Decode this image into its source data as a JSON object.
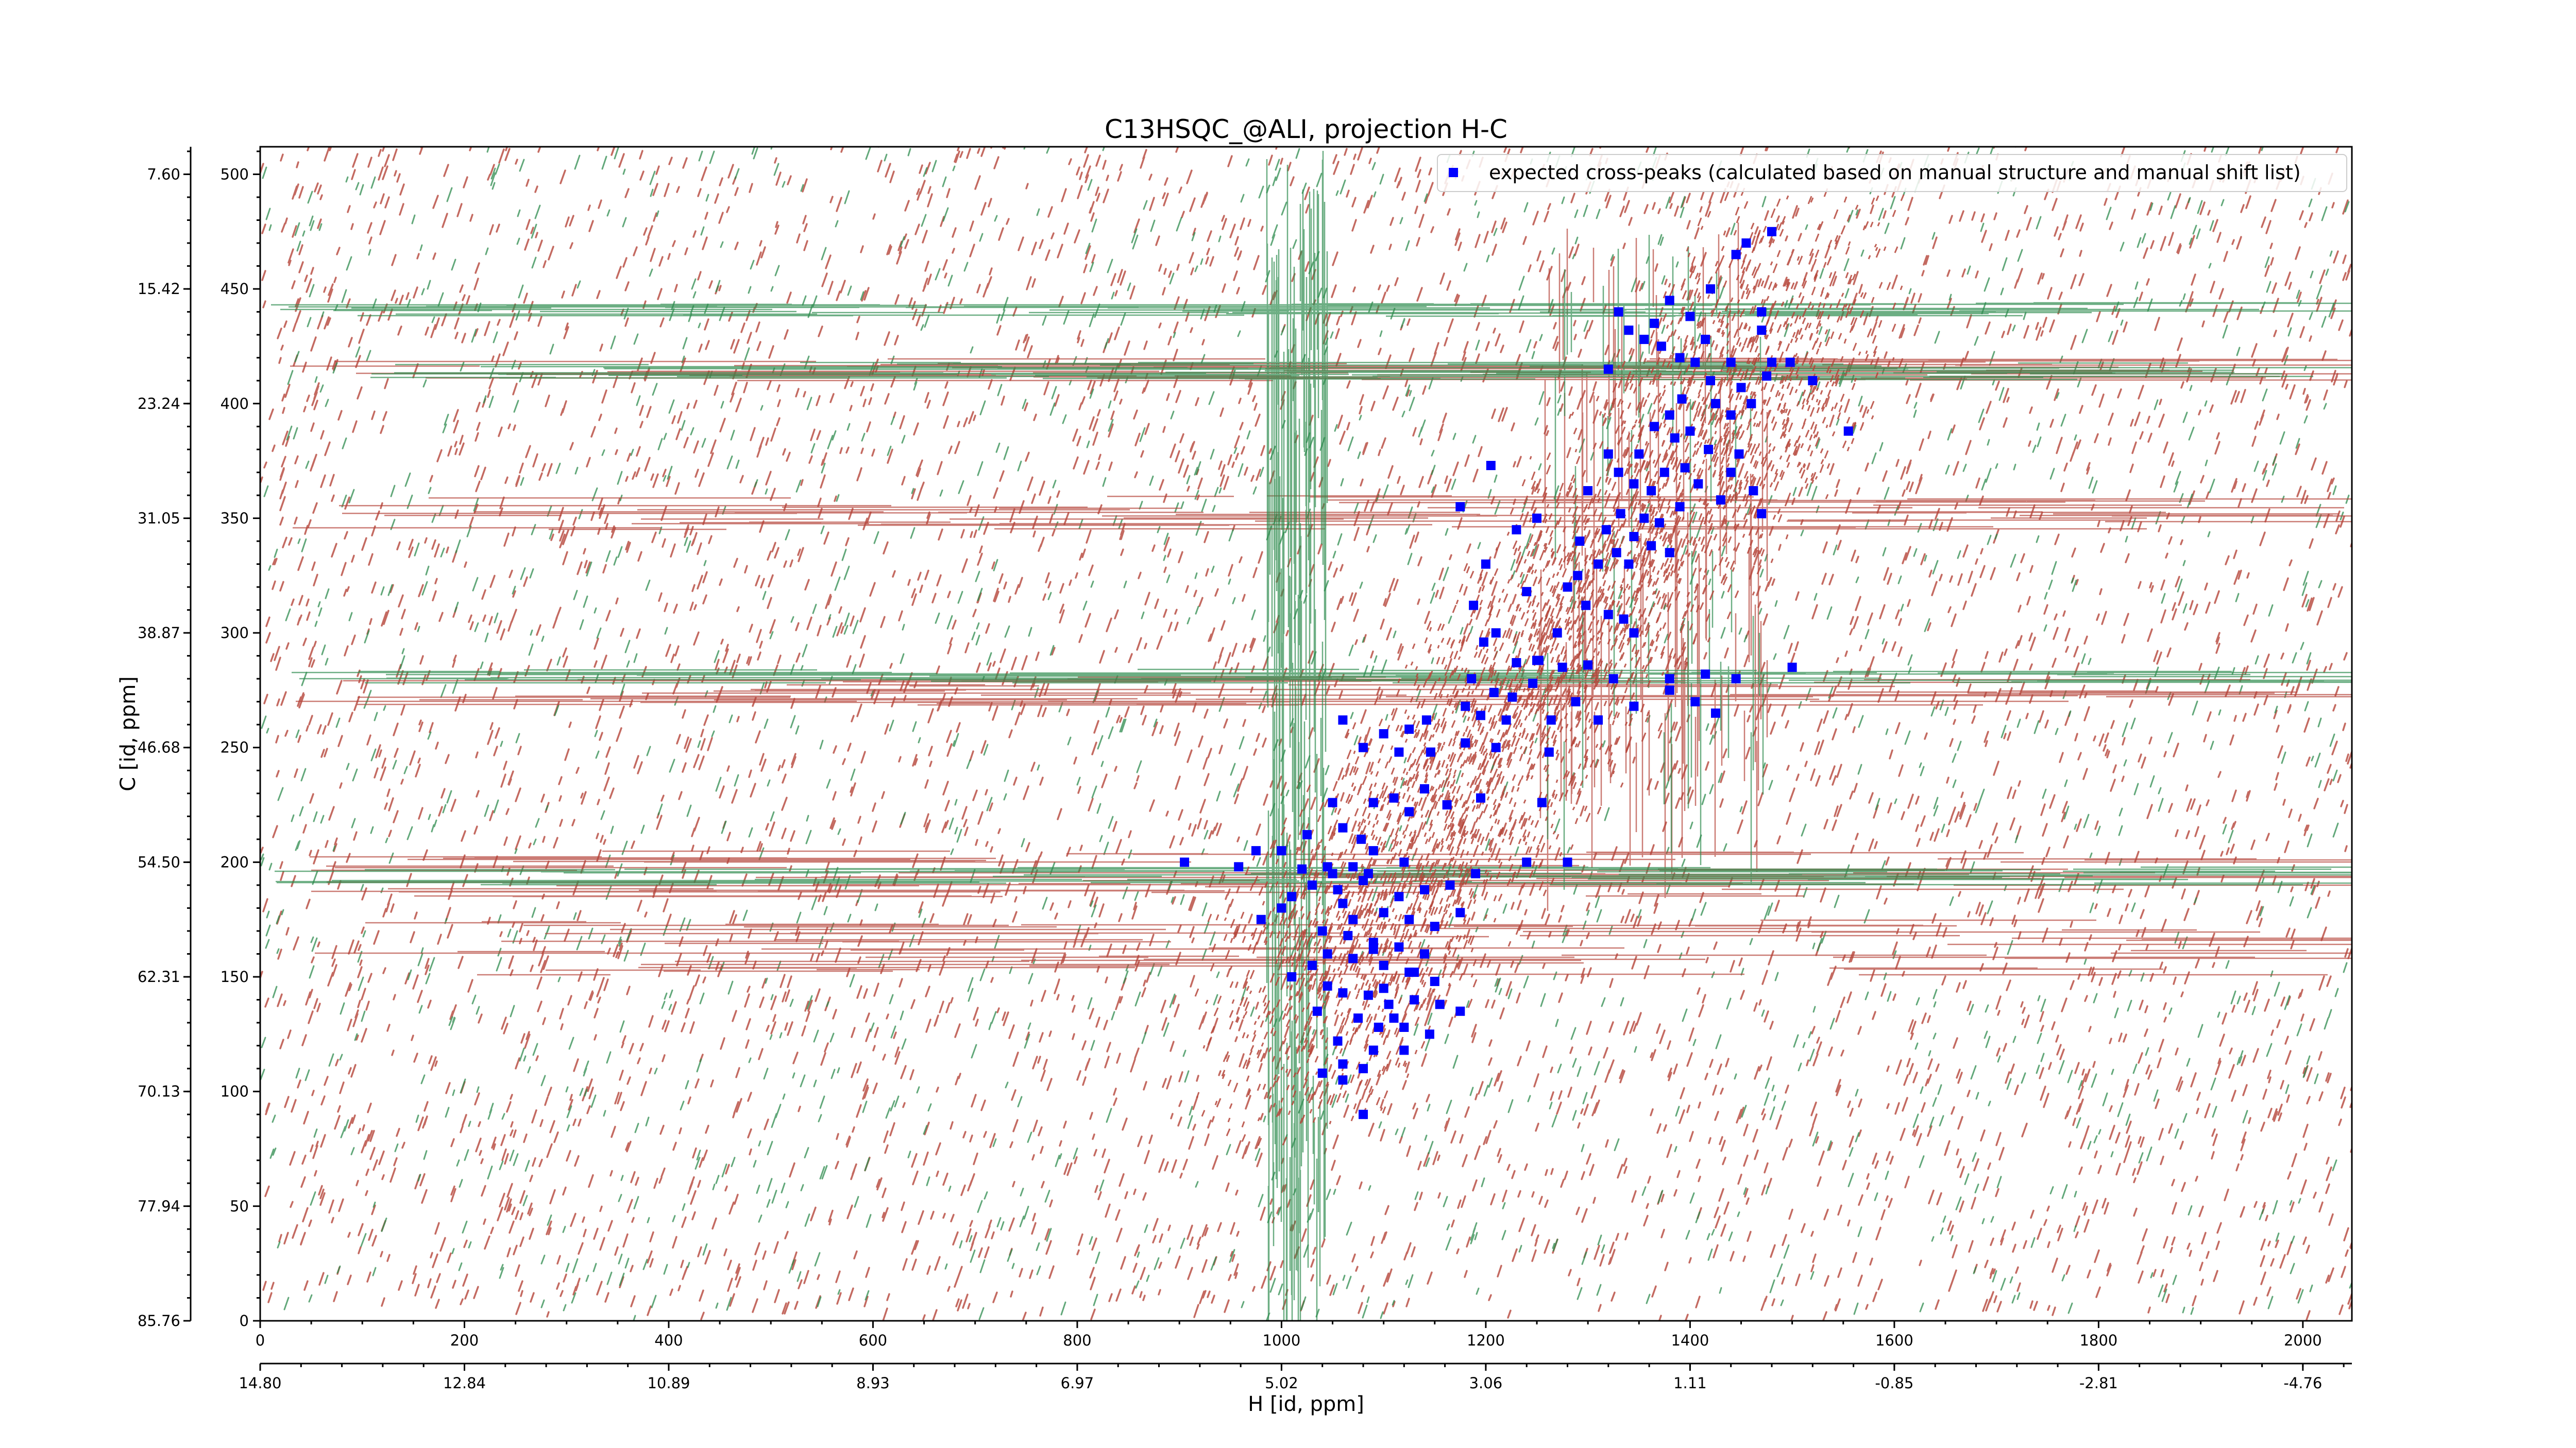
{
  "chart_data": {
    "type": "scatter",
    "title": "C13HSQC_@ALI, projection H-C",
    "xlabel": "H [id, ppm]",
    "ylabel": "C [id, ppm]",
    "xlim": [
      0,
      2048
    ],
    "ylim": [
      0,
      512
    ],
    "grid": false,
    "legend_position": "top-right",
    "x_ticks": [
      "0",
      "200",
      "400",
      "600",
      "800",
      "1000",
      "1200",
      "1400",
      "1600",
      "1800",
      "2000"
    ],
    "y_ticks": [
      "0",
      "50",
      "100",
      "150",
      "200",
      "250",
      "300",
      "350",
      "400",
      "450",
      "500"
    ],
    "x_ppm_ticks": [
      "14.80",
      "12.84",
      "10.89",
      "8.93",
      "6.97",
      "5.02",
      "3.06",
      "1.11",
      "-0.85",
      "-2.81",
      "-4.76"
    ],
    "y_ppm_ticks": [
      "7.60",
      "15.42",
      "23.24",
      "31.05",
      "38.87",
      "46.68",
      "54.50",
      "62.31",
      "70.13",
      "77.94",
      "85.76"
    ],
    "colors": {
      "positive_contour": "#b5453a",
      "negative_contour": "#2e8b4e",
      "peaks": "#0000ff"
    },
    "series": [
      {
        "name": "expected cross-peaks (calculated based on manual structure and manual shift list)",
        "color": "#0000ff",
        "points": [
          [
            1480,
            475
          ],
          [
            1455,
            470
          ],
          [
            1445,
            465
          ],
          [
            1420,
            450
          ],
          [
            1380,
            445
          ],
          [
            1330,
            440
          ],
          [
            1400,
            438
          ],
          [
            1365,
            435
          ],
          [
            1340,
            432
          ],
          [
            1355,
            428
          ],
          [
            1470,
            440
          ],
          [
            1470,
            432
          ],
          [
            1415,
            428
          ],
          [
            1372,
            425
          ],
          [
            1390,
            420
          ],
          [
            1405,
            418
          ],
          [
            1440,
            418
          ],
          [
            1480,
            418
          ],
          [
            1498,
            418
          ],
          [
            1520,
            410
          ],
          [
            1475,
            412
          ],
          [
            1320,
            415
          ],
          [
            1420,
            410
          ],
          [
            1450,
            407
          ],
          [
            1392,
            402
          ],
          [
            1425,
            400
          ],
          [
            1380,
            395
          ],
          [
            1440,
            395
          ],
          [
            1460,
            400
          ],
          [
            1365,
            390
          ],
          [
            1385,
            385
          ],
          [
            1400,
            388
          ],
          [
            1555,
            388
          ],
          [
            1418,
            380
          ],
          [
            1448,
            378
          ],
          [
            1350,
            378
          ],
          [
            1320,
            378
          ],
          [
            1330,
            370
          ],
          [
            1375,
            370
          ],
          [
            1395,
            372
          ],
          [
            1345,
            365
          ],
          [
            1362,
            362
          ],
          [
            1408,
            365
          ],
          [
            1440,
            370
          ],
          [
            1462,
            362
          ],
          [
            1205,
            373
          ],
          [
            1300,
            362
          ],
          [
            1390,
            355
          ],
          [
            1332,
            352
          ],
          [
            1355,
            350
          ],
          [
            1370,
            348
          ],
          [
            1318,
            345
          ],
          [
            1345,
            342
          ],
          [
            1292,
            340
          ],
          [
            1362,
            338
          ],
          [
            1380,
            335
          ],
          [
            1328,
            335
          ],
          [
            1310,
            330
          ],
          [
            1340,
            330
          ],
          [
            1290,
            325
          ],
          [
            1470,
            352
          ],
          [
            1430,
            358
          ],
          [
            1250,
            350
          ],
          [
            1175,
            355
          ],
          [
            1230,
            345
          ],
          [
            1200,
            330
          ],
          [
            1280,
            320
          ],
          [
            1240,
            318
          ],
          [
            1298,
            312
          ],
          [
            1320,
            308
          ],
          [
            1345,
            300
          ],
          [
            1335,
            306
          ],
          [
            1270,
            300
          ],
          [
            1188,
            312
          ],
          [
            1210,
            300
          ],
          [
            1252,
            288
          ],
          [
            1275,
            285
          ],
          [
            1230,
            287
          ],
          [
            1198,
            296
          ],
          [
            1186,
            280
          ],
          [
            1208,
            274
          ],
          [
            1226,
            272
          ],
          [
            1246,
            278
          ],
          [
            1250,
            288
          ],
          [
            1300,
            286
          ],
          [
            1325,
            280
          ],
          [
            1380,
            280
          ],
          [
            1415,
            282
          ],
          [
            1445,
            280
          ],
          [
            1180,
            268
          ],
          [
            1195,
            264
          ],
          [
            1220,
            262
          ],
          [
            1264,
            262
          ],
          [
            1288,
            270
          ],
          [
            1310,
            262
          ],
          [
            1345,
            268
          ],
          [
            1380,
            275
          ],
          [
            1405,
            270
          ],
          [
            1425,
            265
          ],
          [
            1500,
            285
          ],
          [
            1060,
            262
          ],
          [
            1100,
            256
          ],
          [
            1125,
            258
          ],
          [
            1142,
            262
          ],
          [
            1080,
            250
          ],
          [
            1115,
            248
          ],
          [
            1146,
            248
          ],
          [
            1180,
            252
          ],
          [
            1210,
            250
          ],
          [
            1262,
            248
          ],
          [
            1140,
            232
          ],
          [
            1162,
            225
          ],
          [
            1195,
            228
          ],
          [
            1110,
            228
          ],
          [
            1090,
            226
          ],
          [
            1125,
            222
          ],
          [
            1255,
            226
          ],
          [
            1050,
            226
          ],
          [
            1060,
            215
          ],
          [
            1025,
            212
          ],
          [
            1000,
            205
          ],
          [
            975,
            205
          ],
          [
            1090,
            205
          ],
          [
            1120,
            200
          ],
          [
            1045,
            198
          ],
          [
            1070,
            198
          ],
          [
            1020,
            197
          ],
          [
            958,
            198
          ],
          [
            905,
            200
          ],
          [
            1240,
            200
          ],
          [
            1280,
            200
          ],
          [
            1115,
            185
          ],
          [
            1140,
            188
          ],
          [
            1165,
            190
          ],
          [
            1190,
            195
          ],
          [
            1050,
            195
          ],
          [
            1080,
            192
          ],
          [
            1030,
            190
          ],
          [
            1010,
            185
          ],
          [
            1060,
            182
          ],
          [
            1100,
            178
          ],
          [
            1125,
            175
          ],
          [
            1150,
            172
          ],
          [
            1175,
            178
          ],
          [
            1040,
            170
          ],
          [
            1065,
            168
          ],
          [
            1090,
            165
          ],
          [
            1115,
            163
          ],
          [
            1140,
            160
          ],
          [
            1045,
            160
          ],
          [
            1070,
            158
          ],
          [
            1100,
            155
          ],
          [
            1125,
            152
          ],
          [
            1150,
            148
          ],
          [
            1030,
            155
          ],
          [
            1010,
            150
          ],
          [
            1045,
            146
          ],
          [
            1060,
            143
          ],
          [
            1085,
            142
          ],
          [
            1105,
            138
          ],
          [
            1130,
            140
          ],
          [
            1155,
            138
          ],
          [
            1175,
            135
          ],
          [
            1035,
            135
          ],
          [
            1075,
            132
          ],
          [
            1095,
            128
          ],
          [
            1120,
            128
          ],
          [
            1145,
            125
          ],
          [
            1055,
            122
          ],
          [
            1090,
            118
          ],
          [
            1120,
            118
          ],
          [
            1060,
            112
          ],
          [
            1080,
            110
          ],
          [
            1040,
            108
          ],
          [
            1060,
            105
          ],
          [
            1000,
            180
          ],
          [
            980,
            175
          ],
          [
            1080,
            90
          ],
          [
            1090,
            162
          ],
          [
            1100,
            145
          ],
          [
            1110,
            132
          ],
          [
            1130,
            152
          ],
          [
            1070,
            175
          ],
          [
            1085,
            195
          ],
          [
            1055,
            188
          ],
          [
            1078,
            210
          ]
        ]
      }
    ]
  }
}
